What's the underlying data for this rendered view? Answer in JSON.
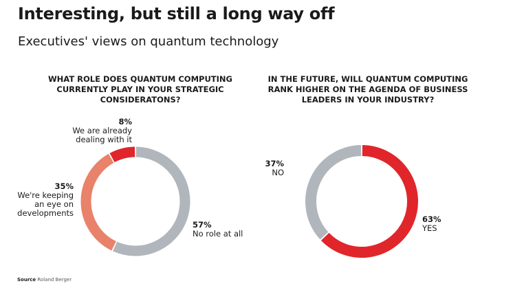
{
  "header": {
    "title": "Interesting, but still a long way off",
    "subtitle": "Executives' views on quantum technology"
  },
  "chart_data": [
    {
      "type": "pie",
      "variant": "donut",
      "title": "WHAT ROLE DOES QUANTUM COMPUTING CURRENTLY PLAY IN YOUR STRATEGIC CONSIDERATONS?",
      "unit": "%",
      "slices": [
        {
          "label": "No role at all",
          "value": 57,
          "value_label": "57%",
          "color": "#b1b6bc"
        },
        {
          "label": "We're keeping an eye on developments",
          "value": 35,
          "value_label": "35%",
          "color": "#e9826a"
        },
        {
          "label": "We are already dealing with it",
          "value": 8,
          "value_label": "8%",
          "color": "#e0262b"
        }
      ],
      "start": "12 o'clock, clockwise"
    },
    {
      "type": "pie",
      "variant": "donut",
      "title": "IN THE FUTURE, WILL QUANTUM COMPUTING RANK HIGHER ON THE AGENDA OF BUSINESS LEADERS IN YOUR INDUSTRY?",
      "unit": "%",
      "slices": [
        {
          "label": "YES",
          "value": 63,
          "value_label": "63%",
          "color": "#e0262b"
        },
        {
          "label": "NO",
          "value": 37,
          "value_label": "37%",
          "color": "#b1b6bc"
        }
      ],
      "start": "12 o'clock, clockwise"
    }
  ],
  "labels": {
    "c1": {
      "s0": {
        "pct": "57%",
        "text": "No role at all"
      },
      "s1": {
        "pct": "35%",
        "line1": "We're keeping",
        "line2": "an eye on",
        "line3": "developments"
      },
      "s2": {
        "pct": "8%",
        "line1": "We are already",
        "line2": "dealing with it"
      }
    },
    "c2": {
      "s0": {
        "pct": "63%",
        "text": "YES"
      },
      "s1": {
        "pct": "37%",
        "text": "NO"
      }
    }
  },
  "footer": {
    "source_label": "Source",
    "source_name": "Roland Berger"
  }
}
